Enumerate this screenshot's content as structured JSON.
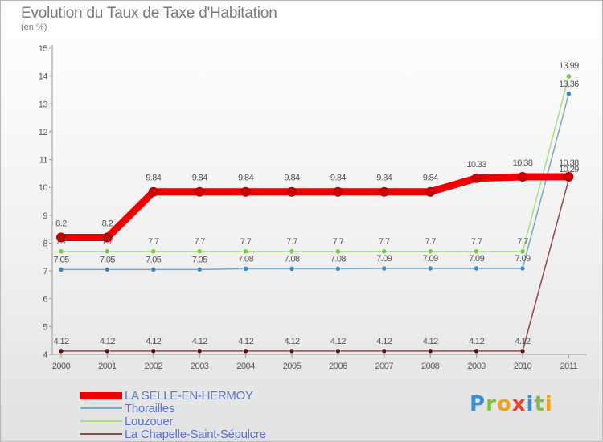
{
  "title": "Evolution du Taux de Taxe d'Habitation",
  "subtitle": "(en %)",
  "logo": {
    "letters": [
      {
        "ch": "P",
        "color": "#3a8fd6"
      },
      {
        "ch": "r",
        "color": "#7cc242"
      },
      {
        "ch": "o",
        "color": "#f2a21b"
      },
      {
        "ch": "x",
        "color": "#e8432e"
      },
      {
        "ch": "i",
        "color": "#3a8fd6"
      },
      {
        "ch": "t",
        "color": "#7cc242"
      },
      {
        "ch": "i",
        "color": "#f2a21b"
      }
    ]
  },
  "chart_data": {
    "type": "line",
    "x": [
      "2000",
      "2001",
      "2002",
      "2003",
      "2004",
      "2005",
      "2006",
      "2007",
      "2008",
      "2009",
      "2010",
      "2011"
    ],
    "ylim": [
      4,
      15
    ],
    "yticks": [
      4,
      5,
      6,
      7,
      8,
      9,
      10,
      11,
      12,
      13,
      14,
      15
    ],
    "grid": false,
    "legend_position": "bottom-left",
    "series": [
      {
        "name": "LA SELLE-EN-HERMOY",
        "color": "#ee0000",
        "marker_color": "#cc0000",
        "width": 9,
        "values": [
          8.2,
          8.2,
          9.84,
          9.84,
          9.84,
          9.84,
          9.84,
          9.84,
          9.84,
          10.33,
          10.38,
          10.38
        ],
        "labels": [
          "8.2",
          "8.2",
          "9.84",
          "9.84",
          "9.84",
          "9.84",
          "9.84",
          "9.84",
          "9.84",
          "10.33",
          "10.38",
          "10.38"
        ]
      },
      {
        "name": "Thorailles",
        "color": "#7aa6c8",
        "marker_color": "#3a86c4",
        "width": 1.5,
        "values": [
          7.05,
          7.05,
          7.05,
          7.05,
          7.08,
          7.08,
          7.08,
          7.09,
          7.09,
          7.09,
          7.09,
          13.36
        ],
        "labels": [
          "7.05",
          "7.05",
          "7.05",
          "7.05",
          "7.08",
          "7.08",
          "7.08",
          "7.09",
          "7.09",
          "7.09",
          "7.09",
          "13.36"
        ]
      },
      {
        "name": "Louzouer",
        "color": "#a6e27a",
        "marker_color": "#7cc242",
        "width": 1.5,
        "values": [
          7.7,
          7.7,
          7.7,
          7.7,
          7.7,
          7.7,
          7.7,
          7.7,
          7.7,
          7.7,
          7.7,
          13.99
        ],
        "labels": [
          "7.7",
          "7.7",
          "7.7",
          "7.7",
          "7.7",
          "7.7",
          "7.7",
          "7.7",
          "7.7",
          "7.7",
          "7.7",
          "13.99"
        ]
      },
      {
        "name": "La Chapelle-Saint-Sépulcre",
        "color": "#8a4a4a",
        "marker_color": "#5a1010",
        "width": 1.5,
        "values": [
          4.12,
          4.12,
          4.12,
          4.12,
          4.12,
          4.12,
          4.12,
          4.12,
          4.12,
          4.12,
          4.12,
          10.29
        ],
        "labels": [
          "4.12",
          "4.12",
          "4.12",
          "4.12",
          "4.12",
          "4.12",
          "4.12",
          "4.12",
          "4.12",
          "4.12",
          "4.12",
          "10.29"
        ]
      }
    ]
  }
}
